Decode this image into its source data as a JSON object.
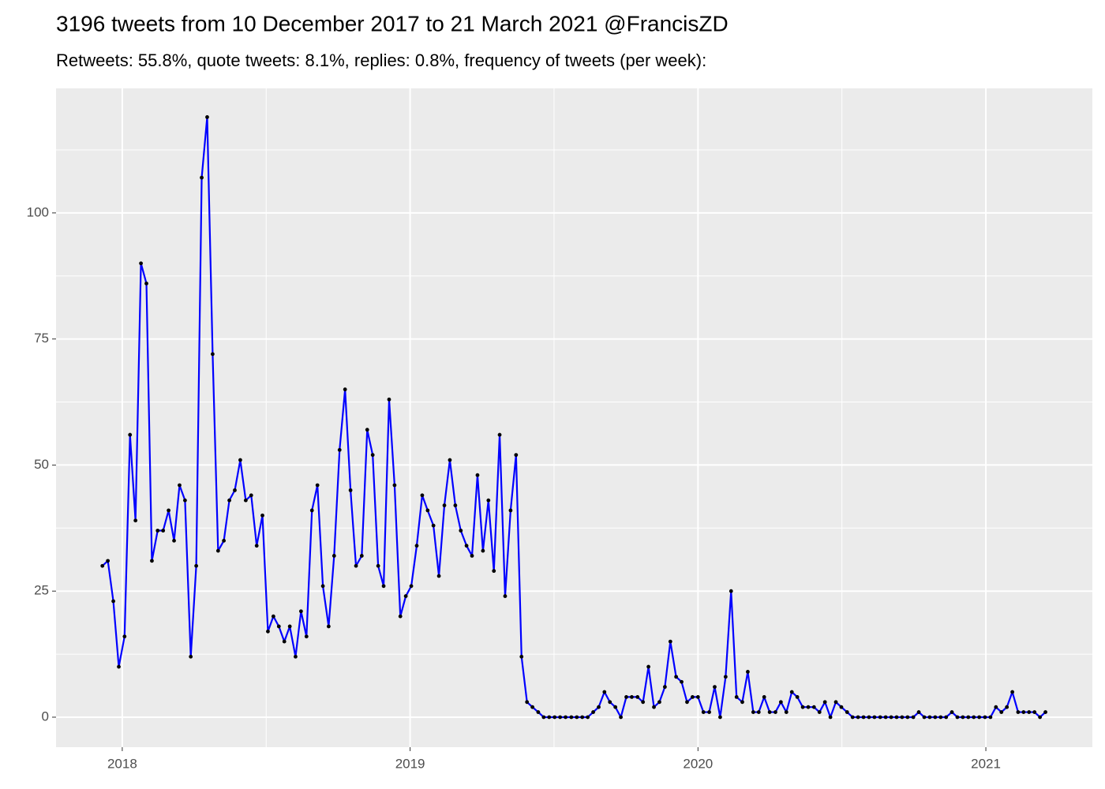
{
  "chart_data": {
    "type": "line",
    "title": "3196 tweets from 10 December 2017 to 21 March 2021 @FrancisZD",
    "subtitle": "Retweets: 55.8%, quote tweets: 8.1%, replies: 0.8%, frequency of tweets (per week):",
    "x": [
      2017.931,
      2017.95,
      2017.969,
      2017.988,
      2018.008,
      2018.027,
      2018.046,
      2018.065,
      2018.084,
      2018.103,
      2018.123,
      2018.142,
      2018.161,
      2018.18,
      2018.199,
      2018.218,
      2018.238,
      2018.257,
      2018.276,
      2018.295,
      2018.314,
      2018.333,
      2018.353,
      2018.372,
      2018.391,
      2018.41,
      2018.429,
      2018.448,
      2018.467,
      2018.487,
      2018.506,
      2018.525,
      2018.544,
      2018.563,
      2018.582,
      2018.602,
      2018.621,
      2018.64,
      2018.659,
      2018.678,
      2018.697,
      2018.717,
      2018.736,
      2018.755,
      2018.774,
      2018.793,
      2018.812,
      2018.832,
      2018.851,
      2018.87,
      2018.889,
      2018.908,
      2018.927,
      2018.946,
      2018.966,
      2018.985,
      2019.004,
      2019.023,
      2019.042,
      2019.061,
      2019.081,
      2019.1,
      2019.119,
      2019.138,
      2019.157,
      2019.176,
      2019.196,
      2019.215,
      2019.234,
      2019.253,
      2019.272,
      2019.291,
      2019.311,
      2019.33,
      2019.349,
      2019.368,
      2019.387,
      2019.406,
      2019.425,
      2019.445,
      2019.464,
      2019.483,
      2019.502,
      2019.521,
      2019.54,
      2019.56,
      2019.579,
      2019.598,
      2019.617,
      2019.636,
      2019.655,
      2019.675,
      2019.694,
      2019.713,
      2019.732,
      2019.751,
      2019.77,
      2019.79,
      2019.809,
      2019.828,
      2019.847,
      2019.866,
      2019.885,
      2019.904,
      2019.924,
      2019.943,
      2019.962,
      2019.981,
      2020,
      2020.019,
      2020.039,
      2020.058,
      2020.077,
      2020.096,
      2020.115,
      2020.134,
      2020.154,
      2020.173,
      2020.192,
      2020.211,
      2020.23,
      2020.249,
      2020.269,
      2020.288,
      2020.307,
      2020.326,
      2020.345,
      2020.364,
      2020.383,
      2020.403,
      2020.422,
      2020.441,
      2020.46,
      2020.479,
      2020.498,
      2020.518,
      2020.537,
      2020.556,
      2020.575,
      2020.594,
      2020.613,
      2020.633,
      2020.652,
      2020.671,
      2020.69,
      2020.709,
      2020.728,
      2020.748,
      2020.767,
      2020.786,
      2020.805,
      2020.824,
      2020.843,
      2020.862,
      2020.882,
      2020.901,
      2020.92,
      2020.939,
      2020.958,
      2020.977,
      2020.997,
      2021.016,
      2021.035,
      2021.054,
      2021.073,
      2021.092,
      2021.112,
      2021.131,
      2021.15,
      2021.169,
      2021.188,
      2021.207
    ],
    "values": [
      30,
      31,
      23,
      10,
      16,
      56,
      39,
      90,
      86,
      31,
      37,
      37,
      41,
      35,
      46,
      43,
      12,
      30,
      107,
      119,
      72,
      33,
      35,
      43,
      45,
      51,
      43,
      44,
      34,
      40,
      17,
      20,
      18,
      15,
      18,
      12,
      21,
      16,
      41,
      46,
      26,
      18,
      32,
      53,
      65,
      45,
      30,
      32,
      57,
      52,
      30,
      26,
      63,
      46,
      20,
      24,
      26,
      34,
      44,
      41,
      38,
      28,
      42,
      51,
      42,
      37,
      34,
      32,
      48,
      33,
      43,
      29,
      56,
      24,
      41,
      52,
      12,
      3,
      2,
      1,
      0,
      0,
      0,
      0,
      0,
      0,
      0,
      0,
      0,
      1,
      2,
      5,
      3,
      2,
      0,
      4,
      4,
      4,
      3,
      10,
      2,
      3,
      6,
      15,
      8,
      7,
      3,
      4,
      4,
      1,
      1,
      6,
      0,
      8,
      25,
      4,
      3,
      9,
      1,
      1,
      4,
      1,
      1,
      3,
      1,
      5,
      4,
      2,
      2,
      2,
      1,
      3,
      0,
      3,
      2,
      1,
      0,
      0,
      0,
      0,
      0,
      0,
      0,
      0,
      0,
      0,
      0,
      0,
      1,
      0,
      0,
      0,
      0,
      0,
      1,
      0,
      0,
      0,
      0,
      0,
      0,
      0,
      2,
      1,
      2,
      5,
      1,
      1,
      1,
      1,
      0,
      1
    ],
    "color": "#0000ff",
    "marker_color": "#000000",
    "xlim": [
      2017.77,
      2021.37
    ],
    "xticks": [
      2018,
      2019,
      2020,
      2021
    ],
    "ylim": [
      -5.95,
      124.7
    ],
    "yticks": [
      0,
      25,
      50,
      75,
      100
    ],
    "grid": true
  }
}
